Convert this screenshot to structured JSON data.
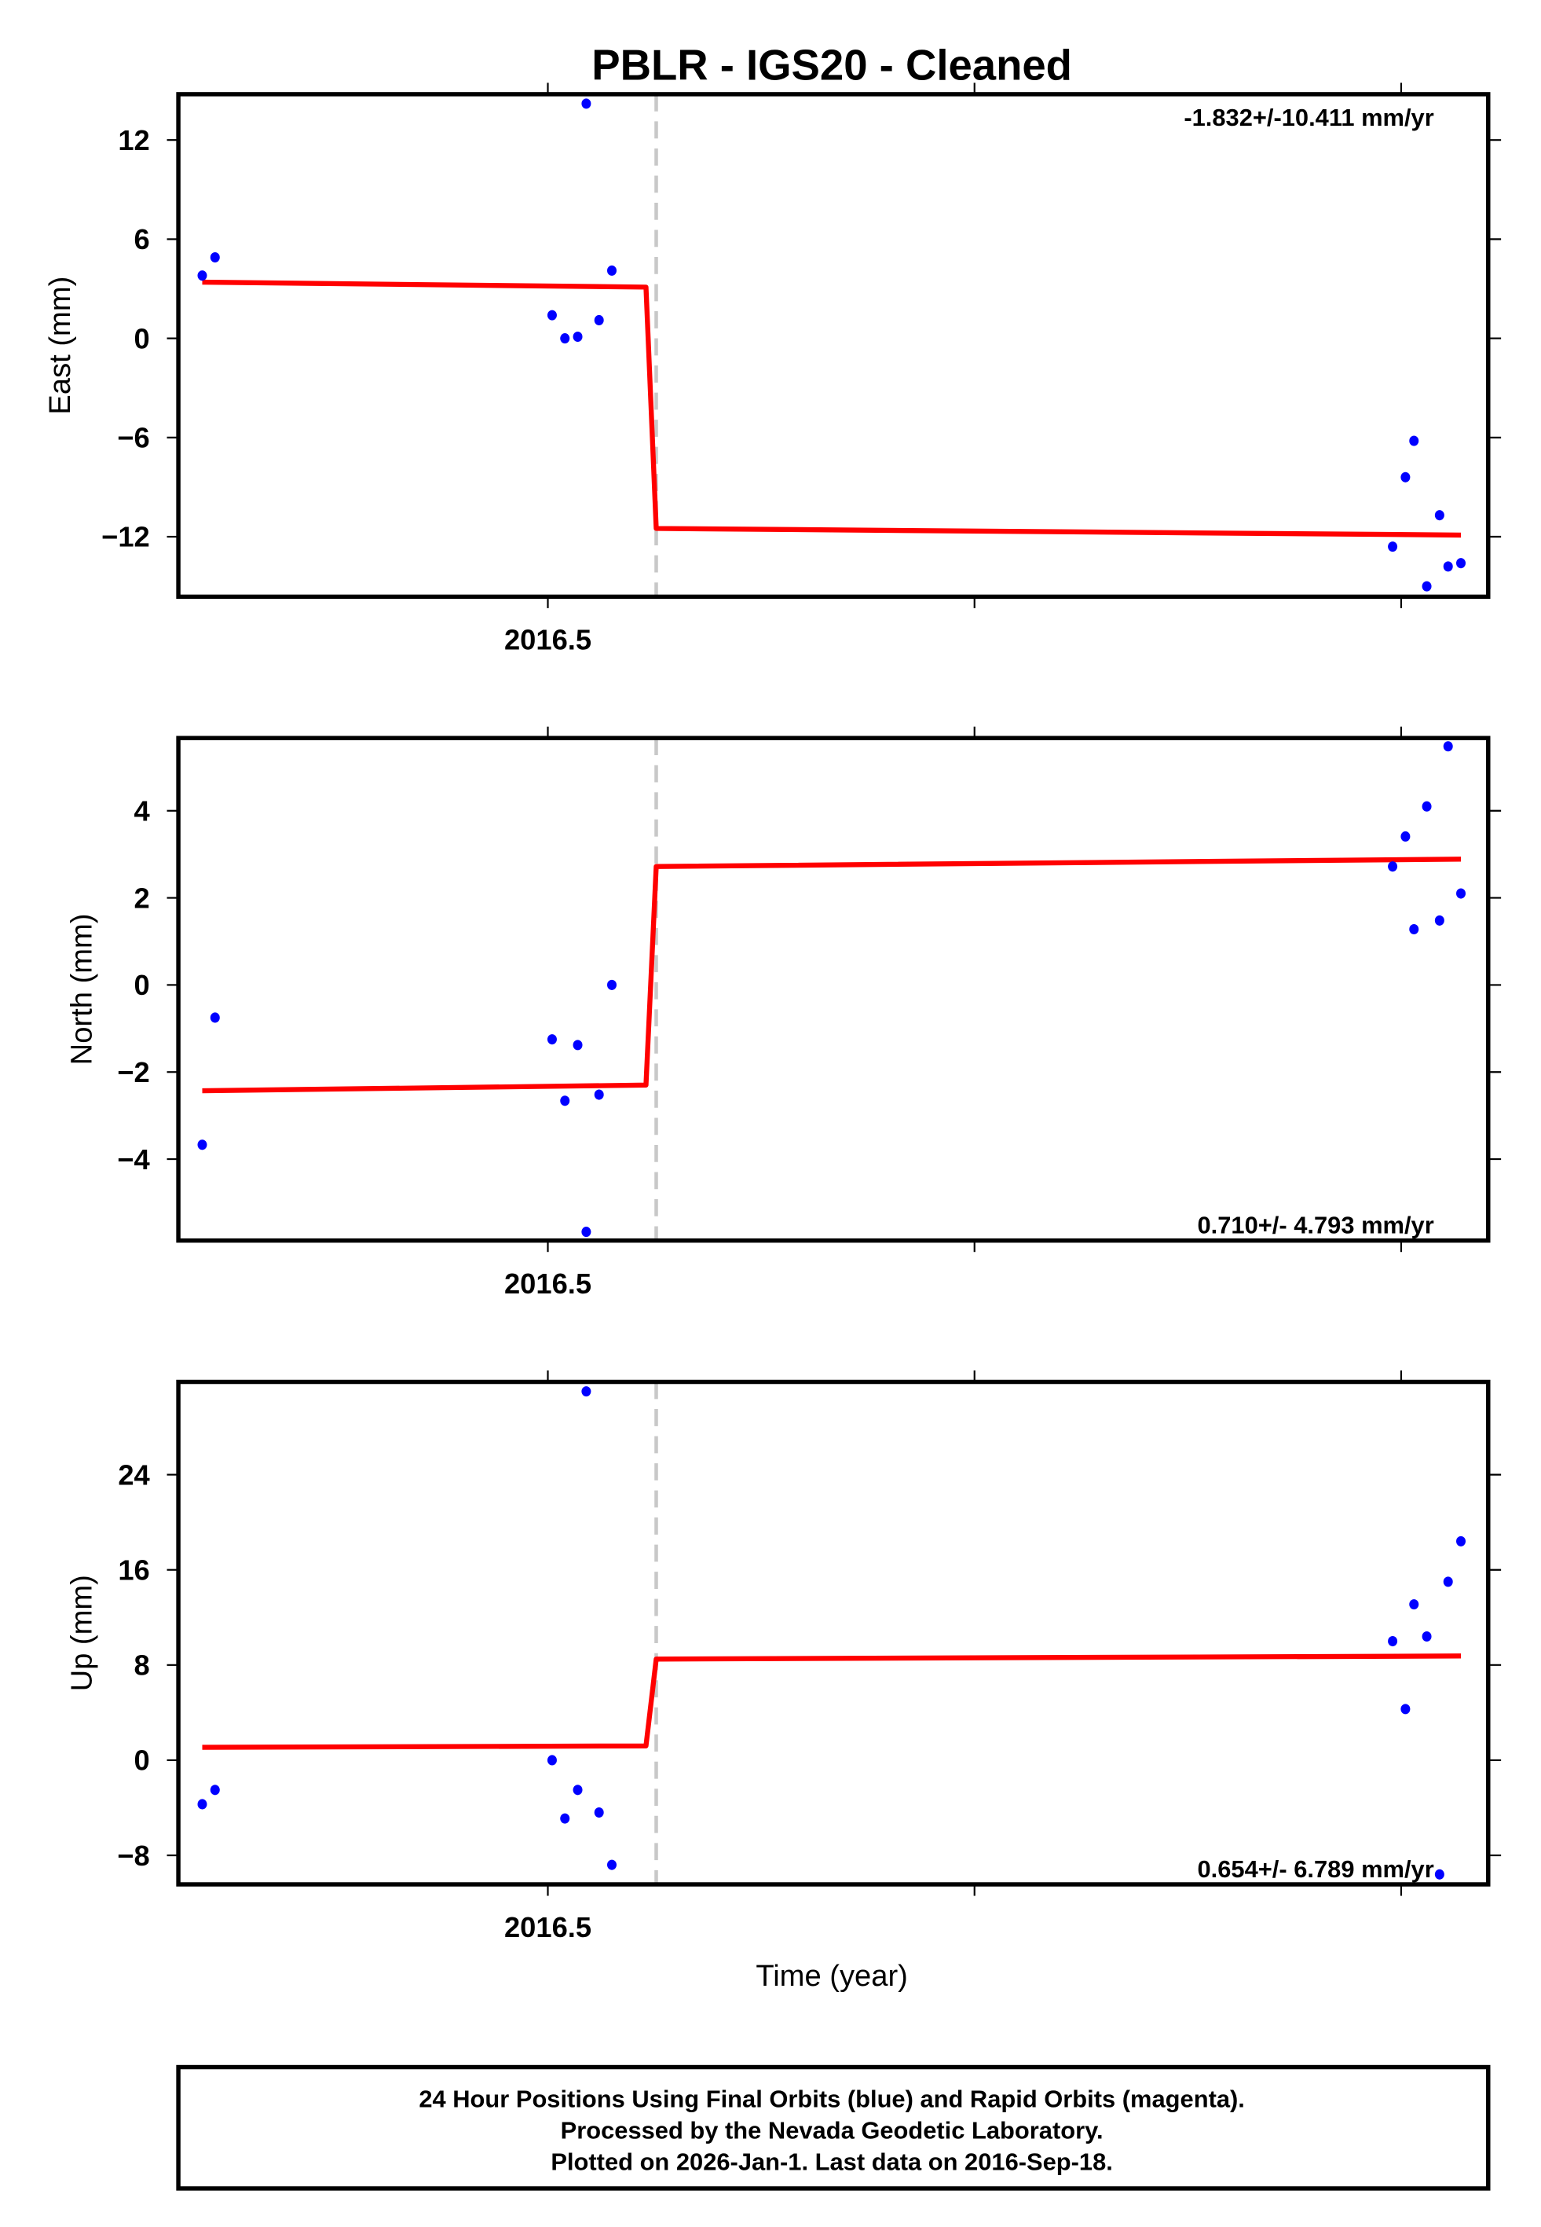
{
  "title": "PBLR  - IGS20 - Cleaned",
  "xlabel": "Time (year)",
  "footer": {
    "line1": "24 Hour Positions Using Final Orbits (blue) and Rapid Orbits (magenta).",
    "line2": "Processed by the Nevada Geodetic Laboratory.",
    "line3": "Plotted on 2026-Jan-1. Last data on 2016-Sep-18."
  },
  "colors": {
    "data": "#0000ff",
    "model": "#ff0000",
    "offset_line": "#c8c8c8",
    "frame": "#000000"
  },
  "chart_data": [
    {
      "type": "scatter",
      "name": "east",
      "ylabel": "East (mm)",
      "rate": "-1.832+/-10.411 mm/yr",
      "rate_position": "top-right",
      "xlim": [
        2016.4134,
        2016.7204
      ],
      "ylim": [
        -15.63,
        14.77
      ],
      "xticks": [
        2016.5,
        2016.6,
        2016.7
      ],
      "xtick_labels": [
        "2016.5",
        "",
        ""
      ],
      "yticks": [
        12,
        6,
        0,
        -6,
        -12
      ],
      "ytick_labels": [
        "12",
        "6",
        "0",
        "−6",
        "−12"
      ],
      "offset_epoch": 2016.5254,
      "x": [
        2016.419,
        2016.422,
        2016.501,
        2016.504,
        2016.507,
        2016.509,
        2016.512,
        2016.515,
        2016.698,
        2016.701,
        2016.703,
        2016.706,
        2016.709,
        2016.711,
        2016.714
      ],
      "y": [
        3.8,
        4.9,
        1.4,
        0.0,
        0.1,
        14.2,
        1.1,
        4.1,
        -12.6,
        -8.4,
        -6.2,
        -15.0,
        -10.7,
        -13.8,
        -13.6
      ],
      "model": {
        "x": [
          2016.419,
          2016.523,
          2016.5254,
          2016.714
        ],
        "y": [
          3.4,
          3.1,
          -11.5,
          -11.9
        ]
      }
    },
    {
      "type": "scatter",
      "name": "north",
      "ylabel": "North (mm)",
      "rate": "0.710+/- 4.793 mm/yr",
      "rate_position": "bottom-right",
      "xlim": [
        2016.4134,
        2016.7204
      ],
      "ylim": [
        -5.87,
        5.67
      ],
      "xticks": [
        2016.5,
        2016.6,
        2016.7
      ],
      "xtick_labels": [
        "2016.5",
        "",
        ""
      ],
      "yticks": [
        4,
        2,
        0,
        -2,
        -4
      ],
      "ytick_labels": [
        "4",
        "2",
        "0",
        "−2",
        "−4"
      ],
      "offset_epoch": 2016.5254,
      "x": [
        2016.419,
        2016.422,
        2016.501,
        2016.504,
        2016.507,
        2016.509,
        2016.512,
        2016.515,
        2016.698,
        2016.701,
        2016.703,
        2016.706,
        2016.709,
        2016.711,
        2016.714
      ],
      "y": [
        -3.67,
        -0.75,
        -1.25,
        -2.66,
        -1.38,
        -5.67,
        -2.52,
        0.0,
        2.72,
        3.41,
        1.28,
        4.1,
        1.48,
        5.48,
        2.1
      ],
      "model": {
        "x": [
          2016.419,
          2016.523,
          2016.5254,
          2016.714
        ],
        "y": [
          -2.43,
          -2.3,
          2.72,
          2.89
        ]
      }
    },
    {
      "type": "scatter",
      "name": "up",
      "ylabel": "Up (mm)",
      "rate": "0.654+/- 6.789 mm/yr",
      "rate_position": "bottom-right",
      "xlim": [
        2016.4134,
        2016.7204
      ],
      "ylim": [
        -10.44,
        31.8
      ],
      "xticks": [
        2016.5,
        2016.6,
        2016.7
      ],
      "xtick_labels": [
        "2016.5",
        "",
        ""
      ],
      "yticks": [
        24,
        16,
        8,
        0,
        -8
      ],
      "ytick_labels": [
        "24",
        "16",
        "8",
        "0",
        "−8"
      ],
      "offset_epoch": 2016.5254,
      "x": [
        2016.419,
        2016.422,
        2016.501,
        2016.504,
        2016.507,
        2016.509,
        2016.512,
        2016.515,
        2016.698,
        2016.701,
        2016.703,
        2016.706,
        2016.709,
        2016.711,
        2016.714
      ],
      "y": [
        -3.7,
        -2.5,
        0.0,
        -4.9,
        -2.5,
        31.0,
        -4.4,
        -8.8,
        10.0,
        4.3,
        13.1,
        10.4,
        -9.6,
        15.0,
        18.4
      ],
      "model": {
        "x": [
          2016.419,
          2016.523,
          2016.5254,
          2016.714
        ],
        "y": [
          1.08,
          1.2,
          8.5,
          8.76
        ]
      }
    }
  ]
}
